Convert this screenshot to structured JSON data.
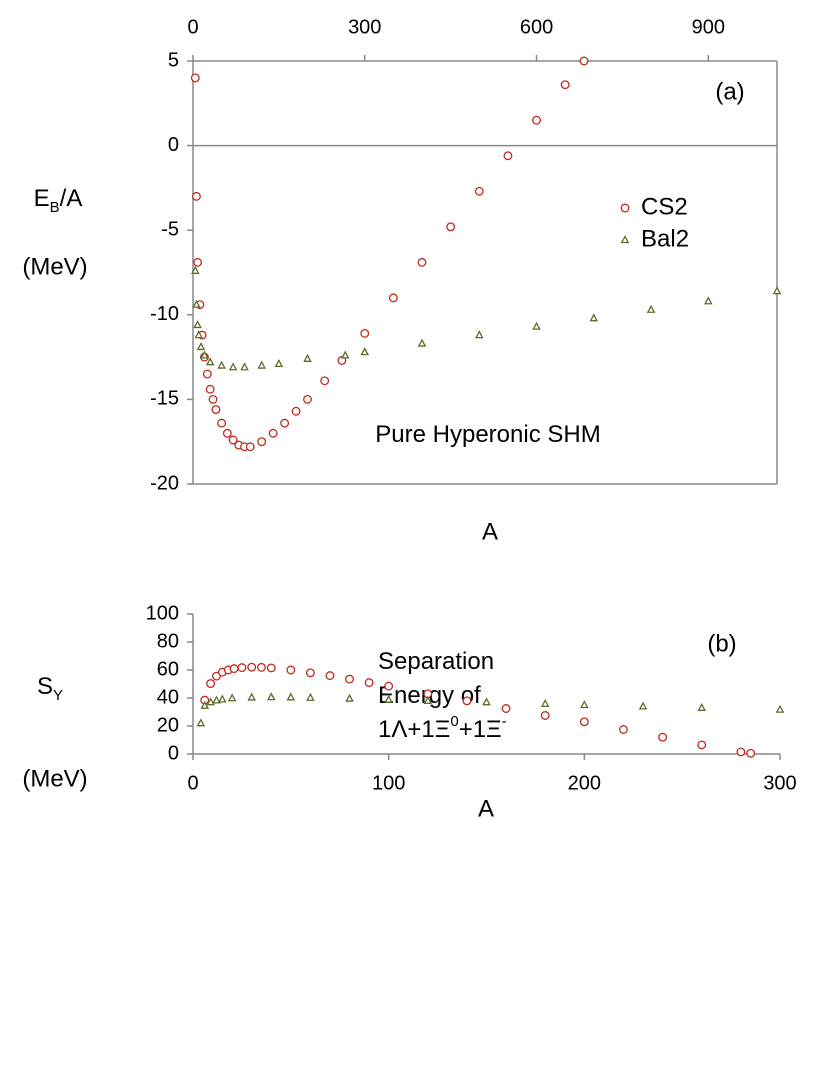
{
  "chart_data": [
    {
      "type": "scatter",
      "panel_label": "(a)",
      "x_axis_position": "top",
      "x_label": "A",
      "y_label": [
        {
          "text": "E"
        },
        {
          "text": "B",
          "style": "sub"
        },
        {
          "text": "/A"
        }
      ],
      "y_unit": "(MeV)",
      "annotation": [
        [
          {
            "text": "Pure Hyperonic SHM"
          }
        ]
      ],
      "legend": "right",
      "box": true,
      "xlim": [
        0,
        1020
      ],
      "xticks": [
        0,
        300,
        600,
        900
      ],
      "ylim": [
        -20,
        5
      ],
      "yticks": [
        -20,
        -15,
        -10,
        -5,
        0,
        5
      ],
      "series": [
        {
          "name": "CS2",
          "color": "#c0281e",
          "marker": "circle",
          "x": [
            4,
            6,
            8,
            12,
            16,
            20,
            25,
            30,
            35,
            40,
            50,
            60,
            70,
            80,
            90,
            100,
            120,
            140,
            160,
            180,
            200,
            230,
            260,
            300,
            350,
            400,
            450,
            500,
            550,
            600,
            650,
            683
          ],
          "values": [
            4,
            -3,
            -6.9,
            -9.4,
            -11.2,
            -12.5,
            -13.5,
            -14.4,
            -15,
            -15.6,
            -16.4,
            -17,
            -17.4,
            -17.7,
            -17.8,
            -17.8,
            -17.5,
            -17,
            -16.4,
            -15.7,
            -15,
            -13.9,
            -12.7,
            -11.1,
            -9,
            -6.9,
            -4.8,
            -2.7,
            -0.6,
            1.5,
            3.6,
            5
          ]
        },
        {
          "name": "Bal2",
          "color": "#5a6e2a",
          "marker": "triangle",
          "x": [
            4,
            6,
            8,
            10,
            14,
            20,
            30,
            50,
            70,
            90,
            120,
            150,
            200,
            266,
            300,
            400,
            500,
            600,
            700,
            800,
            900,
            1020
          ],
          "values": [
            -7.4,
            -9.4,
            -10.6,
            -11.2,
            -11.9,
            -12.4,
            -12.8,
            -13,
            -13.1,
            -13.1,
            -13,
            -12.9,
            -12.6,
            -12.4,
            -12.2,
            -11.7,
            -11.2,
            -10.7,
            -10.2,
            -9.7,
            -9.2,
            -8.6
          ]
        }
      ]
    },
    {
      "type": "scatter",
      "panel_label": "(b)",
      "x_axis_position": "bottom",
      "x_label": "A",
      "y_label": [
        {
          "text": "S"
        },
        {
          "text": "Y",
          "style": "sub"
        }
      ],
      "y_unit": "(MeV)",
      "annotation": [
        [
          {
            "text": "Separation"
          }
        ],
        [
          {
            "text": "Energy of"
          }
        ],
        [
          {
            "text": "1Λ+1Ξ"
          },
          {
            "text": "0",
            "style": "sup"
          },
          {
            "text": "+1Ξ"
          },
          {
            "text": "-",
            "style": "sup"
          }
        ]
      ],
      "box": false,
      "xlim": [
        0,
        300
      ],
      "xticks": [
        0,
        100,
        200,
        300
      ],
      "ylim": [
        0,
        100
      ],
      "yticks": [
        0,
        20,
        40,
        60,
        80,
        100
      ],
      "series": [
        {
          "name": "CS2",
          "color": "#c0281e",
          "marker": "circle",
          "x": [
            6,
            9,
            12,
            15,
            18,
            21,
            25,
            30,
            35,
            40,
            50,
            60,
            70,
            80,
            90,
            100,
            120,
            140,
            160,
            180,
            200,
            220,
            240,
            260,
            280,
            285
          ],
          "values": [
            38.5,
            50.3,
            55.6,
            58.5,
            60,
            61,
            61.7,
            62,
            61.9,
            61.5,
            60,
            58,
            56,
            53.5,
            51,
            48.5,
            43,
            38,
            32.5,
            27.5,
            23,
            17.5,
            12,
            6.5,
            1.5,
            0.5
          ]
        },
        {
          "name": "Bal2",
          "color": "#5a6e2a",
          "marker": "triangle",
          "x": [
            4,
            6,
            9,
            12,
            15,
            20,
            30,
            40,
            50,
            60,
            80,
            100,
            120,
            150,
            180,
            200,
            230,
            260,
            300
          ],
          "values": [
            22,
            34.5,
            37,
            38.3,
            39,
            39.8,
            40.4,
            40.6,
            40.5,
            40.2,
            39.6,
            38.8,
            38,
            37,
            35.8,
            35,
            34,
            33,
            31.7
          ]
        }
      ]
    }
  ]
}
